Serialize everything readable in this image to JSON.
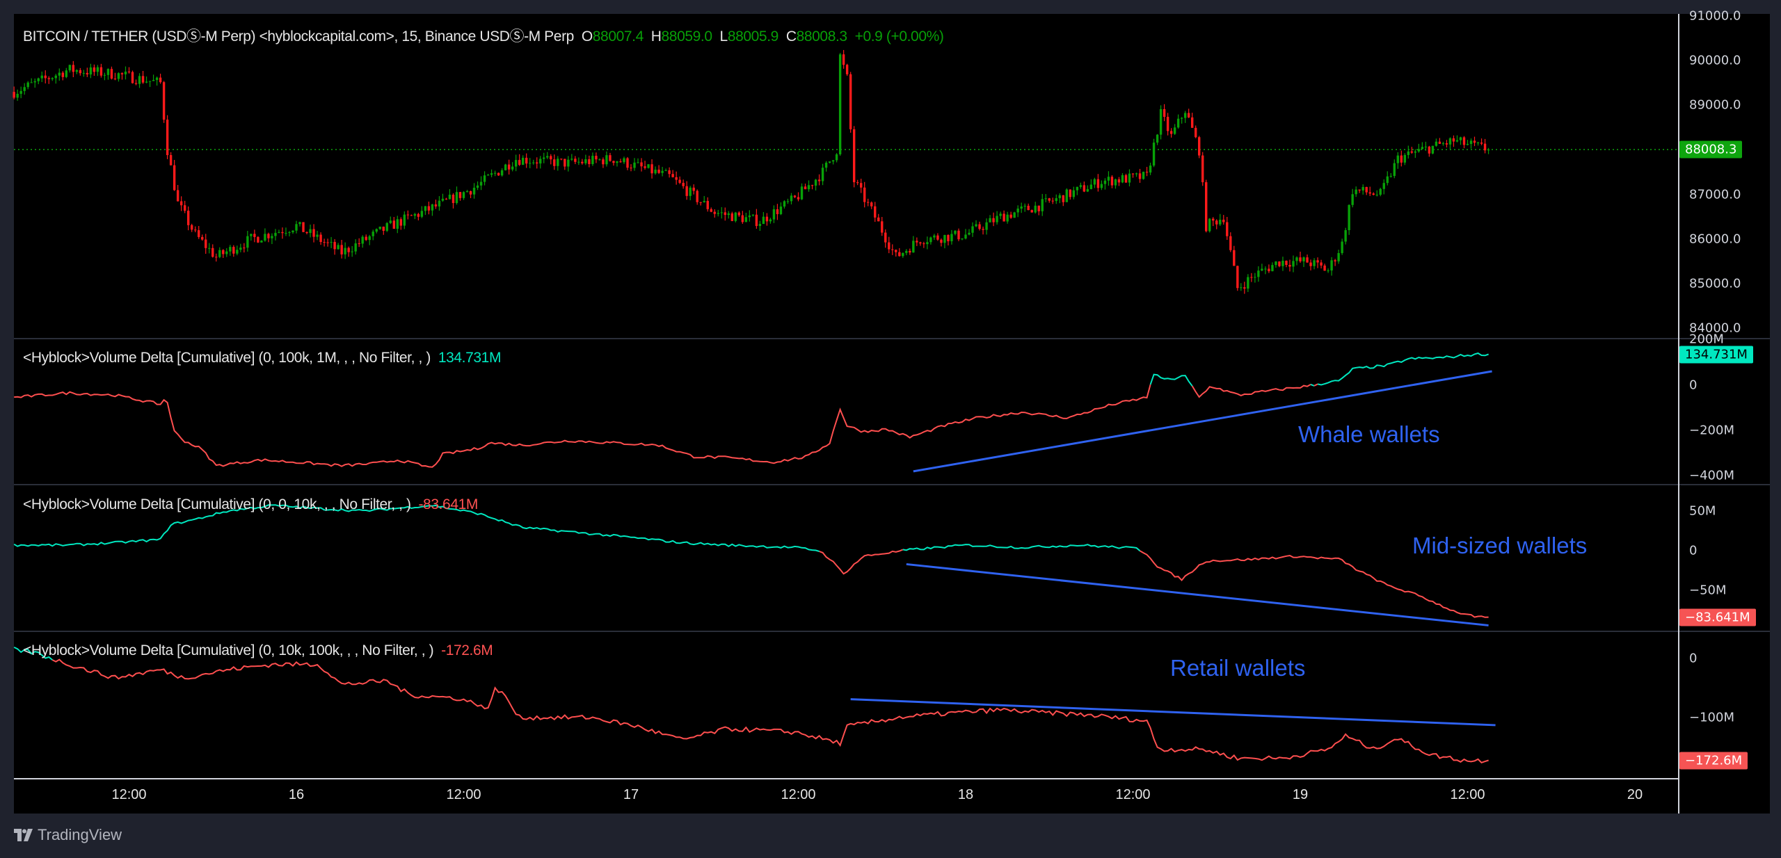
{
  "header": {
    "symbol": "BITCOIN / TETHER (USDⓈ-M Perp) <hyblockcapital.com>, 15, Binance USDⓈ-M Perp",
    "o_label": "O",
    "o_value": "88007.4",
    "h_label": "H",
    "h_value": "88059.0",
    "l_label": "L",
    "l_value": "88005.9",
    "c_label": "C",
    "c_value": "88008.3",
    "change": "+0.9 (+0.00%)"
  },
  "colors": {
    "up": "#08a108",
    "down": "#ff1a1a",
    "positive_line": "#00e8c0",
    "negative_line": "#ff4f4f",
    "trendline": "#2f62f0",
    "last_price": "#0ea50e"
  },
  "indicators": [
    {
      "title": "<Hyblock>Volume Delta [Cumulative] (0, 100k, 1M, , , No Filter, , )",
      "value": "134.731M",
      "value_color": "teal",
      "annotation": "Whale wallets"
    },
    {
      "title": "<Hyblock>Volume Delta [Cumulative] (0, 0, 10k, , , No Filter, , )",
      "value": "-83.641M",
      "value_color": "red",
      "annotation": "Mid-sized wallets"
    },
    {
      "title": "<Hyblock>Volume Delta [Cumulative] (0, 10k, 100k, , , No Filter, , )",
      "value": "-172.6M",
      "value_color": "red",
      "annotation": "Retail wallets"
    }
  ],
  "price_axis": {
    "ticks": [
      "91000.0",
      "90000.0",
      "89000.0",
      "88000.0",
      "87000.0",
      "86000.0",
      "85000.0",
      "84000.0"
    ],
    "last_price": "88008.3"
  },
  "indicator_axes": [
    {
      "ticks": [
        {
          "label": "200M",
          "value": 200
        },
        {
          "label": "0",
          "value": 0
        },
        {
          "label": "−200M",
          "value": -200
        },
        {
          "label": "−400M",
          "value": -400
        }
      ],
      "last": "134.731M"
    },
    {
      "ticks": [
        {
          "label": "50M",
          "value": 50
        },
        {
          "label": "0",
          "value": 0
        },
        {
          "label": "−50M",
          "value": -50
        }
      ],
      "last": "−83.641M"
    },
    {
      "ticks": [
        {
          "label": "0",
          "value": 0
        },
        {
          "label": "−100M",
          "value": -100
        }
      ],
      "last": "−172.6M"
    }
  ],
  "time_axis": [
    {
      "label": "12:00",
      "time": "15 12:00"
    },
    {
      "label": "16",
      "time": "16 00:00"
    },
    {
      "label": "12:00",
      "time": "16 12:00"
    },
    {
      "label": "17",
      "time": "17 00:00"
    },
    {
      "label": "12:00",
      "time": "17 12:00"
    },
    {
      "label": "18",
      "time": "18 00:00"
    },
    {
      "label": "12:00",
      "time": "18 12:00"
    },
    {
      "label": "19",
      "time": "19 00:00"
    },
    {
      "label": "12:00",
      "time": "19 12:00"
    },
    {
      "label": "20",
      "time": "20 00:00"
    }
  ],
  "footer": {
    "brand": "TradingView"
  },
  "chart_data": [
    {
      "type": "candlestick",
      "interval": "15",
      "ylim": [
        84000,
        91000
      ],
      "last_close": 88008.3,
      "price_path": [
        [
          "15 03:45",
          89300
        ],
        [
          "15 07:40",
          89800
        ],
        [
          "15 11:00",
          89700
        ],
        [
          "15 14:15",
          89500
        ],
        [
          "15 14:45",
          88000
        ],
        [
          "15 15:30",
          86800
        ],
        [
          "15 16:45",
          86100
        ],
        [
          "15 18:15",
          85600
        ],
        [
          "15 20:45",
          86000
        ],
        [
          "16 00:00",
          86300
        ],
        [
          "16 03:15",
          85700
        ],
        [
          "16 06:45",
          86300
        ],
        [
          "16 10:30",
          86800
        ],
        [
          "16 13:00",
          87200
        ],
        [
          "16 15:45",
          87800
        ],
        [
          "16 19:30",
          87700
        ],
        [
          "16 22:45",
          87800
        ],
        [
          "17 02:45",
          87400
        ],
        [
          "17 06:00",
          86600
        ],
        [
          "17 09:15",
          86400
        ],
        [
          "17 11:45",
          86900
        ],
        [
          "17 13:45",
          87500
        ],
        [
          "17 14:45",
          88000
        ],
        [
          "17 15:00",
          90100
        ],
        [
          "17 15:30",
          89600
        ],
        [
          "17 16:00",
          87300
        ],
        [
          "17 17:30",
          86500
        ],
        [
          "17 19:00",
          85600
        ],
        [
          "17 20:45",
          86000
        ],
        [
          "18 00:00",
          86100
        ],
        [
          "18 02:30",
          86500
        ],
        [
          "18 05:45",
          86800
        ],
        [
          "18 09:45",
          87300
        ],
        [
          "18 13:00",
          87400
        ],
        [
          "18 14:00",
          88800
        ],
        [
          "18 14:45",
          88300
        ],
        [
          "18 15:45",
          88900
        ],
        [
          "18 16:45",
          88000
        ],
        [
          "18 17:15",
          86300
        ],
        [
          "18 18:30",
          86500
        ],
        [
          "18 19:30",
          84900
        ],
        [
          "18 20:45",
          85200
        ],
        [
          "18 22:30",
          85500
        ],
        [
          "19 00:30",
          85500
        ],
        [
          "19 02:00",
          85300
        ],
        [
          "19 03:00",
          85900
        ],
        [
          "19 03:45",
          87100
        ],
        [
          "19 05:45",
          87000
        ],
        [
          "19 07:00",
          87800
        ],
        [
          "19 08:45",
          88000
        ],
        [
          "19 11:00",
          88200
        ],
        [
          "19 13:30",
          88008.3
        ]
      ]
    },
    {
      "type": "line",
      "name": "Volume Delta [Cumulative] (0, 100k, 1M)",
      "unit": "M",
      "last": 134.731,
      "points": [
        [
          "15 03:45",
          -55
        ],
        [
          "15 07:40",
          -35
        ],
        [
          "15 11:00",
          -45
        ],
        [
          "15 14:15",
          -85
        ],
        [
          "15 14:40",
          -55
        ],
        [
          "15 15:15",
          -205
        ],
        [
          "15 15:55",
          -245
        ],
        [
          "15 17:10",
          -280
        ],
        [
          "15 18:15",
          -355
        ],
        [
          "15 21:30",
          -330
        ],
        [
          "16 00:00",
          -340
        ],
        [
          "16 03:15",
          -355
        ],
        [
          "16 05:40",
          -345
        ],
        [
          "16 07:20",
          -330
        ],
        [
          "16 09:45",
          -365
        ],
        [
          "16 10:30",
          -305
        ],
        [
          "16 13:00",
          -280
        ],
        [
          "16 13:50",
          -255
        ],
        [
          "16 16:15",
          -265
        ],
        [
          "16 19:30",
          -245
        ],
        [
          "16 22:45",
          -255
        ],
        [
          "17 02:00",
          -265
        ],
        [
          "17 04:30",
          -315
        ],
        [
          "17 06:55",
          -320
        ],
        [
          "17 10:10",
          -340
        ],
        [
          "17 12:40",
          -315
        ],
        [
          "17 14:15",
          -255
        ],
        [
          "17 15:00",
          -105
        ],
        [
          "17 15:30",
          -180
        ],
        [
          "17 16:40",
          -205
        ],
        [
          "17 18:20",
          -195
        ],
        [
          "17 20:00",
          -230
        ],
        [
          "17 22:25",
          -180
        ],
        [
          "18 00:50",
          -145
        ],
        [
          "18 04:05",
          -120
        ],
        [
          "18 07:20",
          -145
        ],
        [
          "18 10:35",
          -85
        ],
        [
          "18 13:00",
          -55
        ],
        [
          "18 13:25",
          45
        ],
        [
          "18 14:40",
          20
        ],
        [
          "18 15:40",
          45
        ],
        [
          "18 16:45",
          -55
        ],
        [
          "18 17:35",
          -5
        ],
        [
          "18 19:35",
          -45
        ],
        [
          "18 21:15",
          -30
        ],
        [
          "19 00:30",
          -5
        ],
        [
          "19 02:55",
          20
        ],
        [
          "19 03:45",
          70
        ],
        [
          "19 06:10",
          85
        ],
        [
          "19 07:50",
          115
        ],
        [
          "19 10:15",
          120
        ],
        [
          "19 12:40",
          135
        ],
        [
          "19 13:30",
          134.731
        ]
      ],
      "trendline": [
        [
          "17 20:15",
          -380
        ],
        [
          "19 13:45",
          60
        ]
      ]
    },
    {
      "type": "line",
      "name": "Volume Delta [Cumulative] (0, 0, 10k)",
      "unit": "M",
      "last": -83.641,
      "points": [
        [
          "15 03:45",
          7
        ],
        [
          "15 07:40",
          7
        ],
        [
          "15 11:00",
          10
        ],
        [
          "15 14:15",
          14
        ],
        [
          "15 15:00",
          33
        ],
        [
          "15 16:40",
          39
        ],
        [
          "15 19:05",
          50
        ],
        [
          "15 22:20",
          57
        ],
        [
          "16 01:35",
          53
        ],
        [
          "16 04:50",
          50
        ],
        [
          "16 09:45",
          57
        ],
        [
          "16 13:00",
          47
        ],
        [
          "16 16:15",
          29
        ],
        [
          "16 19:30",
          24
        ],
        [
          "17 00:25",
          16
        ],
        [
          "17 03:40",
          10
        ],
        [
          "17 06:55",
          7
        ],
        [
          "17 11:50",
          4
        ],
        [
          "17 13:30",
          0
        ],
        [
          "17 14:15",
          -10
        ],
        [
          "17 15:15",
          -29
        ],
        [
          "17 16:40",
          -7
        ],
        [
          "17 19:55",
          1
        ],
        [
          "18 00:00",
          7
        ],
        [
          "18 04:05",
          4
        ],
        [
          "18 08:10",
          7
        ],
        [
          "18 12:15",
          3
        ],
        [
          "18 13:00",
          -4
        ],
        [
          "18 13:50",
          -21
        ],
        [
          "18 15:30",
          -36
        ],
        [
          "18 17:10",
          -13
        ],
        [
          "18 20:25",
          -11
        ],
        [
          "18 23:40",
          -7
        ],
        [
          "19 02:55",
          -11
        ],
        [
          "19 03:45",
          -21
        ],
        [
          "19 06:10",
          -43
        ],
        [
          "19 08:35",
          -57
        ],
        [
          "19 11:00",
          -76
        ],
        [
          "19 12:40",
          -84
        ],
        [
          "19 13:30",
          -83.641
        ]
      ],
      "trendline": [
        [
          "17 19:45",
          -17
        ],
        [
          "19 13:30",
          -94
        ]
      ]
    },
    {
      "type": "line",
      "name": "Volume Delta [Cumulative] (0, 10k, 100k)",
      "unit": "M",
      "last": -172.6,
      "points": [
        [
          "15 03:45",
          15
        ],
        [
          "15 05:15",
          10
        ],
        [
          "15 07:40",
          -10
        ],
        [
          "15 11:00",
          -33
        ],
        [
          "15 14:15",
          -19
        ],
        [
          "15 15:55",
          -33
        ],
        [
          "15 19:05",
          -19
        ],
        [
          "15 22:20",
          -10
        ],
        [
          "16 01:35",
          -10
        ],
        [
          "16 03:15",
          -44
        ],
        [
          "16 06:30",
          -38
        ],
        [
          "16 08:10",
          -62
        ],
        [
          "16 11:25",
          -67
        ],
        [
          "16 13:00",
          -77
        ],
        [
          "16 13:50",
          -87
        ],
        [
          "16 14:15",
          -48
        ],
        [
          "16 15:05",
          -67
        ],
        [
          "16 15:55",
          -100
        ],
        [
          "16 17:55",
          -100
        ],
        [
          "16 21:10",
          -100
        ],
        [
          "17 00:25",
          -115
        ],
        [
          "17 03:40",
          -138
        ],
        [
          "17 06:55",
          -119
        ],
        [
          "17 11:50",
          -125
        ],
        [
          "17 15:05",
          -144
        ],
        [
          "17 15:30",
          -115
        ],
        [
          "17 19:10",
          -100
        ],
        [
          "17 23:15",
          -92
        ],
        [
          "18 02:30",
          -87
        ],
        [
          "18 05:45",
          -92
        ],
        [
          "18 09:00",
          -96
        ],
        [
          "18 13:00",
          -106
        ],
        [
          "18 13:50",
          -154
        ],
        [
          "18 17:05",
          -154
        ],
        [
          "18 19:30",
          -169
        ],
        [
          "18 22:45",
          -169
        ],
        [
          "19 02:00",
          -154
        ],
        [
          "19 03:15",
          -131
        ],
        [
          "19 05:15",
          -154
        ],
        [
          "19 06:55",
          -135
        ],
        [
          "19 09:20",
          -163
        ],
        [
          "19 11:50",
          -173
        ],
        [
          "19 13:30",
          -172.6
        ]
      ],
      "trendline": [
        [
          "17 15:45",
          -69
        ],
        [
          "19 14:00",
          -113
        ]
      ]
    }
  ]
}
